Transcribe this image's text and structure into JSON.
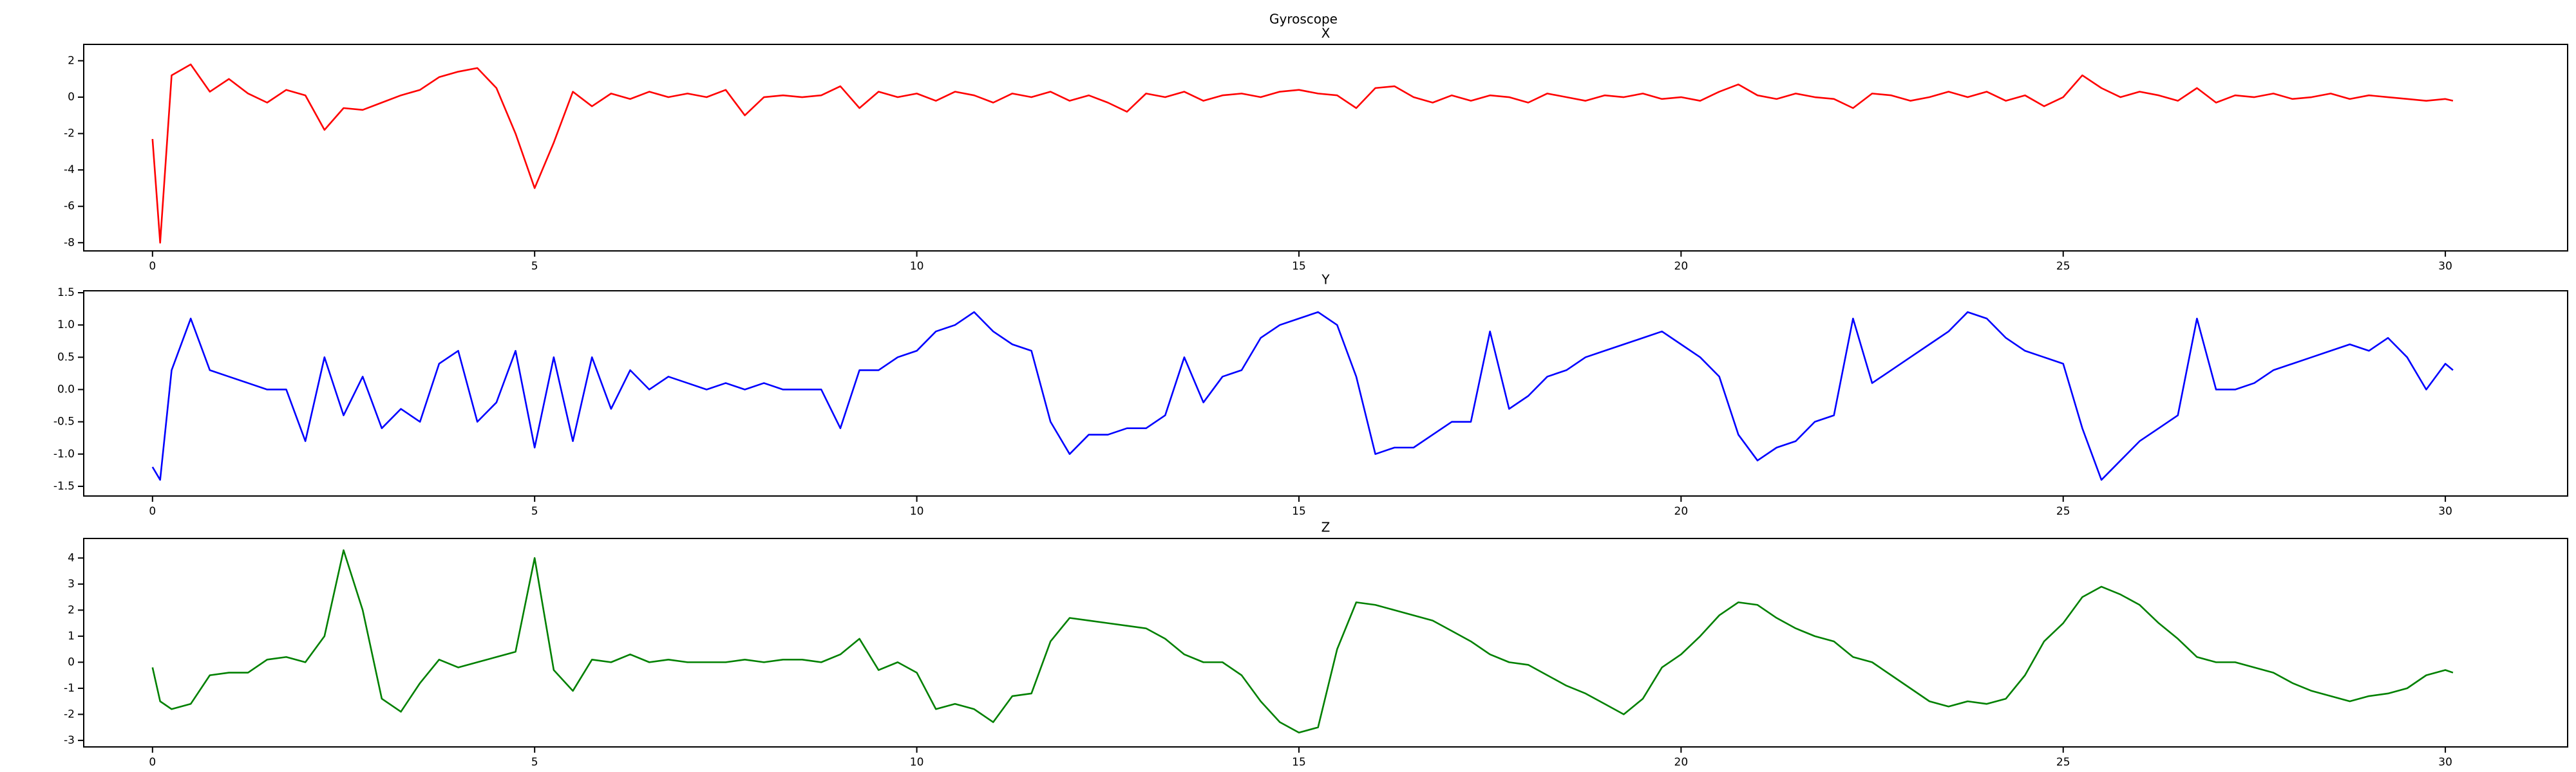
{
  "title": "Gyroscope",
  "chart_data": [
    {
      "type": "line",
      "title": "X",
      "x": [
        0,
        0.1,
        0.25,
        0.5,
        0.75,
        1,
        1.25,
        1.5,
        1.75,
        2,
        2.25,
        2.5,
        2.75,
        3,
        3.25,
        3.5,
        3.75,
        4,
        4.25,
        4.5,
        4.75,
        5,
        5.25,
        5.5,
        5.75,
        6,
        6.25,
        6.5,
        6.75,
        7,
        7.25,
        7.5,
        7.75,
        8,
        8.25,
        8.5,
        8.75,
        9,
        9.25,
        9.5,
        9.75,
        10,
        10.25,
        10.5,
        10.75,
        11,
        11.25,
        11.5,
        11.75,
        12,
        12.25,
        12.5,
        12.75,
        13,
        13.25,
        13.5,
        13.75,
        14,
        14.25,
        14.5,
        14.75,
        15,
        15.25,
        15.5,
        15.75,
        16,
        16.25,
        16.5,
        16.75,
        17,
        17.25,
        17.5,
        17.75,
        18,
        18.25,
        18.5,
        18.75,
        19,
        19.25,
        19.5,
        19.75,
        20,
        20.25,
        20.5,
        20.75,
        21,
        21.25,
        21.5,
        21.75,
        22,
        22.25,
        22.5,
        22.75,
        23,
        23.25,
        23.5,
        23.75,
        24,
        24.25,
        24.5,
        24.75,
        25,
        25.25,
        25.5,
        25.75,
        26,
        26.25,
        26.5,
        26.75,
        27,
        27.25,
        27.5,
        27.75,
        28,
        28.25,
        28.5,
        28.75,
        29,
        29.25,
        29.5,
        29.75,
        30,
        30.1
      ],
      "series": [
        {
          "color": "#ff0000",
          "values": [
            -2.3,
            -8.0,
            1.2,
            1.8,
            0.3,
            1.0,
            0.2,
            -0.3,
            0.4,
            0.1,
            -1.8,
            -0.6,
            -0.7,
            -0.3,
            0.1,
            0.4,
            1.1,
            1.4,
            1.6,
            0.5,
            -2.0,
            -5.0,
            -2.5,
            0.3,
            -0.5,
            0.2,
            -0.1,
            0.3,
            0.0,
            0.2,
            0.0,
            0.4,
            -1.0,
            0.0,
            0.1,
            0.0,
            0.1,
            0.6,
            -0.6,
            0.3,
            0.0,
            0.2,
            -0.2,
            0.3,
            0.1,
            -0.3,
            0.2,
            0.0,
            0.3,
            -0.2,
            0.1,
            -0.3,
            -0.8,
            0.2,
            0.0,
            0.3,
            -0.2,
            0.1,
            0.2,
            0.0,
            0.3,
            0.4,
            0.2,
            0.1,
            -0.6,
            0.5,
            0.6,
            0.0,
            -0.3,
            0.1,
            -0.2,
            0.1,
            0.0,
            -0.3,
            0.2,
            0.0,
            -0.2,
            0.1,
            0.0,
            0.2,
            -0.1,
            0.0,
            -0.2,
            0.3,
            0.7,
            0.1,
            -0.1,
            0.2,
            0.0,
            -0.1,
            -0.6,
            0.2,
            0.1,
            -0.2,
            0.0,
            0.3,
            0.0,
            0.3,
            -0.2,
            0.1,
            -0.5,
            0.0,
            1.2,
            0.5,
            0.0,
            0.3,
            0.1,
            -0.2,
            0.5,
            -0.3,
            0.1,
            0.0,
            0.2,
            -0.1,
            0.0,
            0.2,
            -0.1,
            0.1,
            0.0,
            -0.1,
            -0.2,
            -0.1,
            -0.2
          ]
        }
      ],
      "xlim": [
        -0.9,
        31.6
      ],
      "xticks": [
        0,
        5,
        10,
        15,
        20,
        25,
        30
      ],
      "ylim": [
        -8.45,
        2.9
      ],
      "yticks": [
        -8,
        -6,
        -4,
        -2,
        0,
        2
      ]
    },
    {
      "type": "line",
      "title": "Y",
      "x": [
        0,
        0.1,
        0.25,
        0.5,
        0.75,
        1,
        1.25,
        1.5,
        1.75,
        2,
        2.25,
        2.5,
        2.75,
        3,
        3.25,
        3.5,
        3.75,
        4,
        4.25,
        4.5,
        4.75,
        5,
        5.25,
        5.5,
        5.75,
        6,
        6.25,
        6.5,
        6.75,
        7,
        7.25,
        7.5,
        7.75,
        8,
        8.25,
        8.5,
        8.75,
        9,
        9.25,
        9.5,
        9.75,
        10,
        10.25,
        10.5,
        10.75,
        11,
        11.25,
        11.5,
        11.75,
        12,
        12.25,
        12.5,
        12.75,
        13,
        13.25,
        13.5,
        13.75,
        14,
        14.25,
        14.5,
        14.75,
        15,
        15.25,
        15.5,
        15.75,
        16,
        16.25,
        16.5,
        16.75,
        17,
        17.25,
        17.5,
        17.75,
        18,
        18.25,
        18.5,
        18.75,
        19,
        19.25,
        19.5,
        19.75,
        20,
        20.25,
        20.5,
        20.75,
        21,
        21.25,
        21.5,
        21.75,
        22,
        22.25,
        22.5,
        22.75,
        23,
        23.25,
        23.5,
        23.75,
        24,
        24.25,
        24.5,
        24.75,
        25,
        25.25,
        25.5,
        25.75,
        26,
        26.25,
        26.5,
        26.75,
        27,
        27.25,
        27.5,
        27.75,
        28,
        28.25,
        28.5,
        28.75,
        29,
        29.25,
        29.5,
        29.75,
        30,
        30.1
      ],
      "series": [
        {
          "color": "#0000ff",
          "values": [
            -1.2,
            -1.4,
            0.3,
            1.1,
            0.3,
            0.2,
            0.1,
            0.0,
            0.0,
            -0.8,
            0.5,
            -0.4,
            0.2,
            -0.6,
            -0.3,
            -0.5,
            0.4,
            0.6,
            -0.5,
            -0.2,
            0.6,
            -0.9,
            0.5,
            -0.8,
            0.5,
            -0.3,
            0.3,
            0.0,
            0.2,
            0.1,
            0.0,
            0.1,
            0.0,
            0.1,
            0.0,
            0.0,
            0.0,
            -0.6,
            0.3,
            0.3,
            0.5,
            0.6,
            0.9,
            1.0,
            1.2,
            0.9,
            0.7,
            0.6,
            -0.5,
            -1.0,
            -0.7,
            -0.7,
            -0.6,
            -0.6,
            -0.4,
            0.5,
            -0.2,
            0.2,
            0.3,
            0.8,
            1.0,
            1.1,
            1.2,
            1.0,
            0.2,
            -1.0,
            -0.9,
            -0.9,
            -0.7,
            -0.5,
            -0.5,
            0.9,
            -0.3,
            -0.1,
            0.2,
            0.3,
            0.5,
            0.6,
            0.7,
            0.8,
            0.9,
            0.7,
            0.5,
            0.2,
            -0.7,
            -1.1,
            -0.9,
            -0.8,
            -0.5,
            -0.4,
            1.1,
            0.1,
            0.3,
            0.5,
            0.7,
            0.9,
            1.2,
            1.1,
            0.8,
            0.6,
            0.5,
            0.4,
            -0.6,
            -1.4,
            -1.1,
            -0.8,
            -0.6,
            -0.4,
            1.1,
            0.0,
            0.0,
            0.1,
            0.3,
            0.4,
            0.5,
            0.6,
            0.7,
            0.6,
            0.8,
            0.5,
            0.0,
            0.4,
            0.3
          ]
        }
      ],
      "xlim": [
        -0.9,
        31.6
      ],
      "xticks": [
        0,
        5,
        10,
        15,
        20,
        25,
        30
      ],
      "ylim": [
        -1.65,
        1.53
      ],
      "yticks": [
        -1.5,
        {
          "value": -1,
          "label": "-1.0"
        },
        -0.5,
        {
          "value": 0,
          "label": "0.0"
        },
        0.5,
        {
          "value": 1,
          "label": "1.0"
        },
        1.5
      ]
    },
    {
      "type": "line",
      "title": "Z",
      "x": [
        0,
        0.1,
        0.25,
        0.5,
        0.75,
        1,
        1.25,
        1.5,
        1.75,
        2,
        2.25,
        2.5,
        2.75,
        3,
        3.25,
        3.5,
        3.75,
        4,
        4.25,
        4.5,
        4.75,
        5,
        5.25,
        5.5,
        5.75,
        6,
        6.25,
        6.5,
        6.75,
        7,
        7.25,
        7.5,
        7.75,
        8,
        8.25,
        8.5,
        8.75,
        9,
        9.25,
        9.5,
        9.75,
        10,
        10.25,
        10.5,
        10.75,
        11,
        11.25,
        11.5,
        11.75,
        12,
        12.25,
        12.5,
        12.75,
        13,
        13.25,
        13.5,
        13.75,
        14,
        14.25,
        14.5,
        14.75,
        15,
        15.25,
        15.5,
        15.75,
        16,
        16.25,
        16.5,
        16.75,
        17,
        17.25,
        17.5,
        17.75,
        18,
        18.25,
        18.5,
        18.75,
        19,
        19.25,
        19.5,
        19.75,
        20,
        20.25,
        20.5,
        20.75,
        21,
        21.25,
        21.5,
        21.75,
        22,
        22.25,
        22.5,
        22.75,
        23,
        23.25,
        23.5,
        23.75,
        24,
        24.25,
        24.5,
        24.75,
        25,
        25.25,
        25.5,
        25.75,
        26,
        26.25,
        26.5,
        26.75,
        27,
        27.25,
        27.5,
        27.75,
        28,
        28.25,
        28.5,
        28.75,
        29,
        29.25,
        29.5,
        29.75,
        30,
        30.1
      ],
      "series": [
        {
          "color": "#008000",
          "values": [
            -0.2,
            -1.5,
            -1.8,
            -1.6,
            -0.5,
            -0.4,
            -0.4,
            0.1,
            0.2,
            0.0,
            1.0,
            4.3,
            2.0,
            -1.4,
            -1.9,
            -0.8,
            0.1,
            -0.2,
            0.0,
            0.2,
            0.4,
            4.0,
            -0.3,
            -1.1,
            0.1,
            0.0,
            0.3,
            0.0,
            0.1,
            0.0,
            0.0,
            0.0,
            0.1,
            0.0,
            0.1,
            0.1,
            0.0,
            0.3,
            0.9,
            -0.3,
            0.0,
            -0.4,
            -1.8,
            -1.6,
            -1.8,
            -2.3,
            -1.3,
            -1.2,
            0.8,
            1.7,
            1.6,
            1.5,
            1.4,
            1.3,
            0.9,
            0.3,
            0.0,
            0.0,
            -0.5,
            -1.5,
            -2.3,
            -2.7,
            -2.5,
            0.5,
            2.3,
            2.2,
            2.0,
            1.8,
            1.6,
            1.2,
            0.8,
            0.3,
            0.0,
            -0.1,
            -0.5,
            -0.9,
            -1.2,
            -1.6,
            -2.0,
            -1.4,
            -0.2,
            0.3,
            1.0,
            1.8,
            2.3,
            2.2,
            1.7,
            1.3,
            1.0,
            0.8,
            0.2,
            0.0,
            -0.5,
            -1.0,
            -1.5,
            -1.7,
            -1.5,
            -1.6,
            -1.4,
            -0.5,
            0.8,
            1.5,
            2.5,
            2.9,
            2.6,
            2.2,
            1.5,
            0.9,
            0.2,
            0.0,
            0.0,
            -0.2,
            -0.4,
            -0.8,
            -1.1,
            -1.3,
            -1.5,
            -1.3,
            -1.2,
            -1.0,
            -0.5,
            -0.3,
            -0.4
          ]
        }
      ],
      "xlim": [
        -0.9,
        31.6
      ],
      "xticks": [
        0,
        5,
        10,
        15,
        20,
        25,
        30
      ],
      "ylim": [
        -3.25,
        4.75
      ],
      "yticks": [
        -3,
        -2,
        -1,
        0,
        1,
        2,
        3,
        4
      ]
    }
  ]
}
